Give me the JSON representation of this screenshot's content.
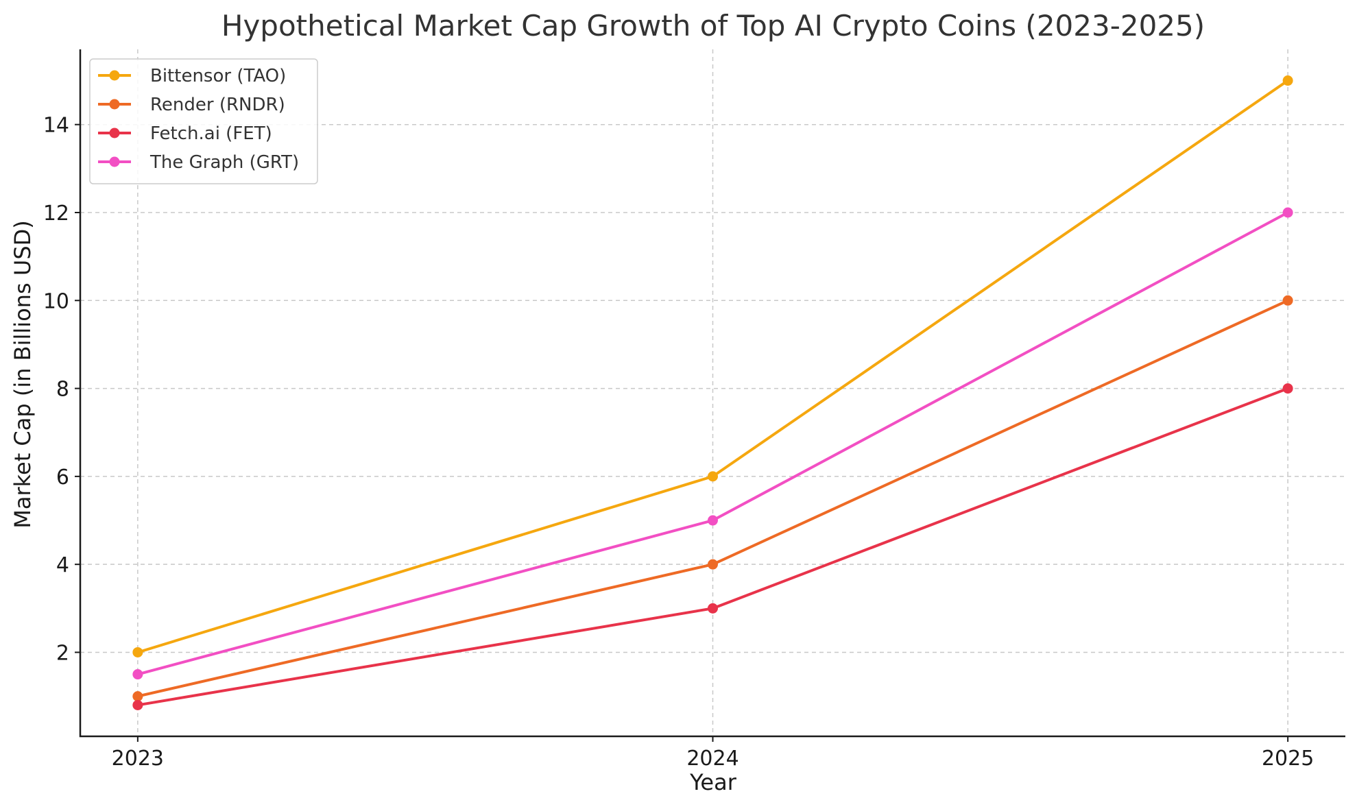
{
  "chart_data": {
    "type": "line",
    "title": "Hypothetical Market Cap Growth of Top AI Crypto Coins (2023-2025)",
    "xlabel": "Year",
    "ylabel": "Market Cap (in Billions USD)",
    "x": [
      2023,
      2024,
      2025
    ],
    "x_tick_labels": [
      "2023",
      "2024",
      "2025"
    ],
    "y_ticks": [
      2,
      4,
      6,
      8,
      10,
      12,
      14
    ],
    "y_tick_labels": [
      "2",
      "4",
      "6",
      "8",
      "10",
      "12",
      "14"
    ],
    "xlim": [
      2022.9,
      2025.1
    ],
    "ylim": [
      0.09,
      15.71
    ],
    "grid": true,
    "legend_position": "top-left",
    "series": [
      {
        "name": "Bittensor (TAO)",
        "color": "#F5A70F",
        "values": [
          2,
          6,
          15
        ]
      },
      {
        "name": "Render (RNDR)",
        "color": "#EE6A25",
        "values": [
          1,
          4,
          10
        ]
      },
      {
        "name": "Fetch.ai (FET)",
        "color": "#E8334A",
        "values": [
          0.8,
          3,
          8
        ]
      },
      {
        "name": "The Graph (GRT)",
        "color": "#F24FC3",
        "values": [
          1.5,
          5,
          12
        ]
      }
    ]
  }
}
